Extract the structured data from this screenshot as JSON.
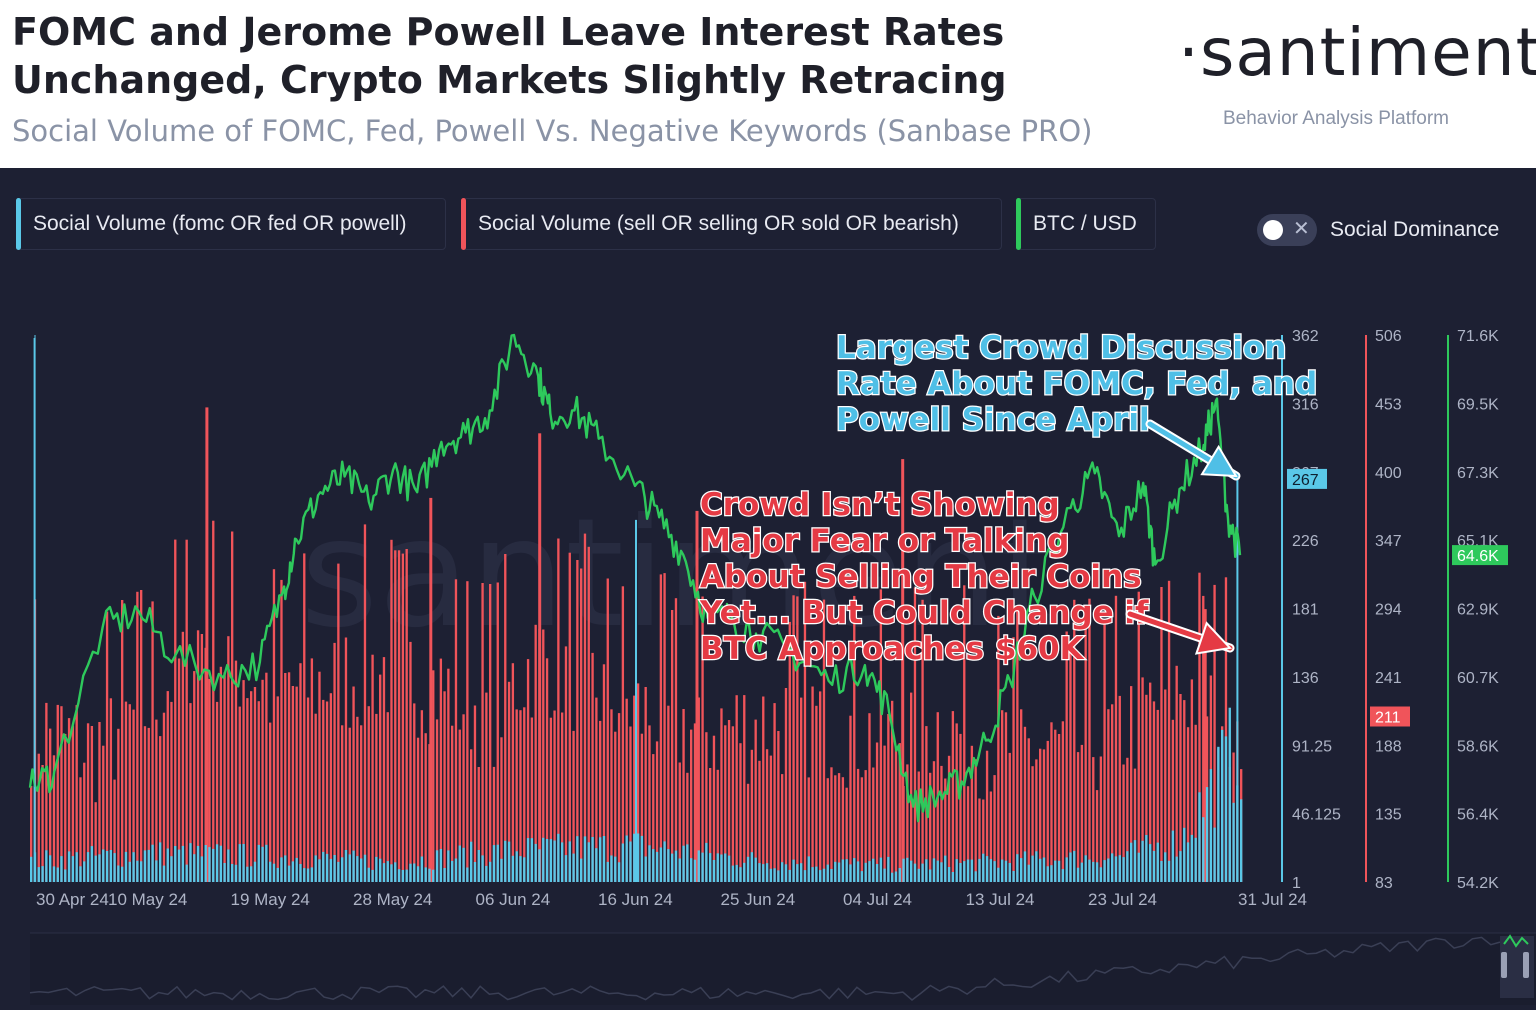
{
  "header": {
    "title": "FOMC and Jerome Powell Leave Interest Rates Unchanged, Crypto Markets Slightly Retracing",
    "subtitle": "Social Volume of FOMC, Fed, Powell Vs. Negative Keywords (Sanbase PRO)",
    "brand": "·santiment·",
    "tagline": "Behavior Analysis Platform"
  },
  "legend": {
    "items": [
      {
        "label": "Social Volume (fomc OR fed OR powell)",
        "color": "#5ac8e8"
      },
      {
        "label": "Social Volume (sell OR selling OR sold OR bearish)",
        "color": "#f0545a"
      },
      {
        "label": "BTC / USD",
        "color": "#2ec95c"
      }
    ],
    "toggle_label": "Social Dominance",
    "toggle_icon": "✕"
  },
  "colors": {
    "background": "#1d2033",
    "blue": "#5ac8e8",
    "red": "#f0545a",
    "green": "#2ec95c",
    "axis_text": "#aeb4c6",
    "grid": "#2a2e44"
  },
  "watermark": "santiment",
  "annotations": {
    "blue_note": [
      "Largest Crowd Discussion",
      "Rate About FOMC, Fed, and",
      "Powell Since April"
    ],
    "red_note": [
      "Crowd Isn’t Showing",
      "Major Fear or Talking",
      "About Selling Their Coins",
      "Yet... But Could Change if",
      "BTC Approaches $60K"
    ]
  },
  "chart_data": {
    "type": "bar+line",
    "title": "Social Volume of FOMC, Fed, Powell Vs. Negative Keywords",
    "x_tick_labels": [
      "30 Apr 24",
      "10 May 24",
      "19 May 24",
      "28 May 24",
      "06 Jun 24",
      "16 Jun 24",
      "25 Jun 24",
      "04 Jul 24",
      "13 Jul 24",
      "23 Jul 24",
      "31 Jul 24"
    ],
    "axes": {
      "fomc_volume": {
        "ticks": [
          "362",
          "316",
          "267",
          "226",
          "181",
          "136",
          "91.25",
          "46.125",
          "1"
        ],
        "ylim": [
          1,
          362
        ],
        "current_label": "267"
      },
      "negative_volume": {
        "ticks": [
          "506",
          "453",
          "400",
          "347",
          "294",
          "241",
          "188",
          "135",
          "83"
        ],
        "ylim": [
          83,
          506
        ],
        "current_label": "211"
      },
      "btc_usd": {
        "ticks": [
          "71.6K",
          "69.5K",
          "67.3K",
          "65.1K",
          "62.9K",
          "60.7K",
          "58.6K",
          "56.4K",
          "54.2K"
        ],
        "ylim": [
          54.2,
          71.6
        ],
        "current_label": "64.6K"
      }
    },
    "series": [
      {
        "name": "Social Volume (fomc OR fed OR powell)",
        "type": "bar",
        "axis": "fomc_volume",
        "unit": "mentions",
        "keyframes_x": [
          0,
          0.1,
          0.2,
          0.3,
          0.4,
          0.5,
          0.6,
          0.7,
          0.8,
          0.9,
          0.95,
          1.0
        ],
        "keyframes_y": [
          15,
          20,
          18,
          14,
          22,
          25,
          15,
          12,
          14,
          18,
          28,
          95
        ],
        "spikes": [
          [
            0.003,
            360
          ],
          [
            0.5,
            240
          ],
          [
            0.997,
            267
          ]
        ]
      },
      {
        "name": "Social Volume (sell OR selling OR sold OR bearish)",
        "type": "bar",
        "axis": "negative_volume",
        "unit": "mentions",
        "keyframes_x": [
          0,
          0.05,
          0.1,
          0.14,
          0.2,
          0.3,
          0.38,
          0.42,
          0.5,
          0.55,
          0.6,
          0.65,
          0.7,
          0.75,
          0.8,
          0.85,
          0.9,
          0.95,
          1.0
        ],
        "keyframes_y": [
          200,
          180,
          215,
          270,
          225,
          245,
          210,
          255,
          210,
          195,
          200,
          205,
          190,
          200,
          185,
          180,
          195,
          230,
          211
        ],
        "spikes": [
          [
            0.145,
            450
          ],
          [
            0.33,
            380
          ],
          [
            0.42,
            430
          ],
          [
            0.55,
            370
          ],
          [
            0.72,
            410
          ],
          [
            0.97,
            294
          ]
        ]
      },
      {
        "name": "BTC / USD",
        "type": "line",
        "axis": "btc_usd",
        "unit": "K USD",
        "x": [
          0,
          0.02,
          0.06,
          0.09,
          0.12,
          0.16,
          0.19,
          0.21,
          0.22,
          0.24,
          0.26,
          0.28,
          0.3,
          0.32,
          0.34,
          0.36,
          0.38,
          0.4,
          0.42,
          0.43,
          0.45,
          0.47,
          0.5,
          0.52,
          0.54,
          0.56,
          0.58,
          0.6,
          0.63,
          0.66,
          0.69,
          0.71,
          0.73,
          0.75,
          0.77,
          0.79,
          0.81,
          0.83,
          0.86,
          0.88,
          0.9,
          0.92,
          0.93,
          0.95,
          0.97,
          0.98,
          0.99,
          1.0
        ],
        "y": [
          57.2,
          57.7,
          62.3,
          62.8,
          61.4,
          60.7,
          61.2,
          63.6,
          65.1,
          66.6,
          67.1,
          66.3,
          67.3,
          66.6,
          68.2,
          68.5,
          69.2,
          71.6,
          70.3,
          69.1,
          69.2,
          68.3,
          66.8,
          65.8,
          64.6,
          62.6,
          62.6,
          62.1,
          61.5,
          60.6,
          61.1,
          59.6,
          56.6,
          56.9,
          57.4,
          58.7,
          60.6,
          63.3,
          66.1,
          67.2,
          65.2,
          66.9,
          64.3,
          66.7,
          68.1,
          69.5,
          65.8,
          64.6
        ]
      }
    ]
  }
}
